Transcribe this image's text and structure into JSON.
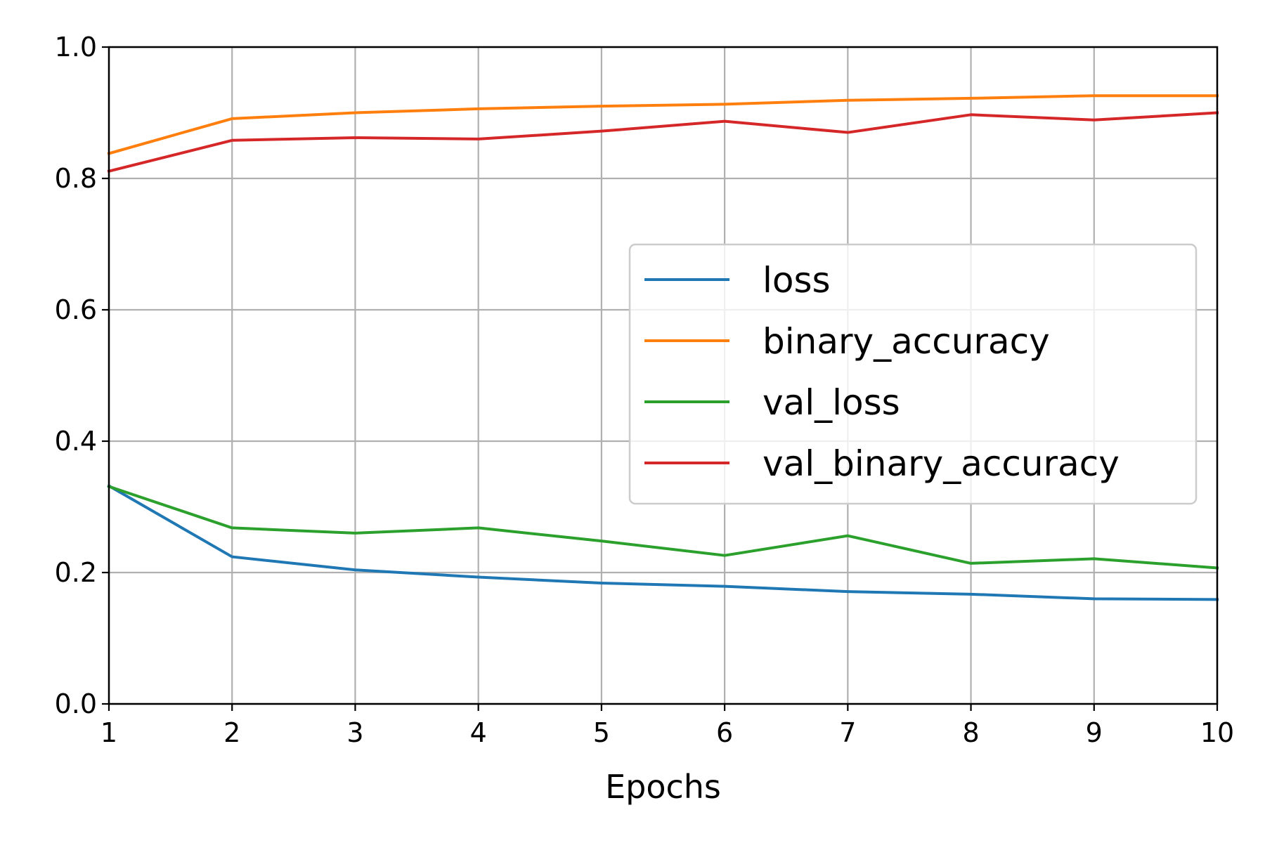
{
  "chart_data": {
    "type": "line",
    "title": "",
    "xlabel": "Epochs",
    "ylabel": "",
    "xlim": [
      1,
      10
    ],
    "ylim": [
      0.0,
      1.0
    ],
    "x": [
      1,
      2,
      3,
      4,
      5,
      6,
      7,
      8,
      9,
      10
    ],
    "x_ticks": [
      "1",
      "2",
      "3",
      "4",
      "5",
      "6",
      "7",
      "8",
      "9",
      "10"
    ],
    "y_ticks": [
      "0.0",
      "0.2",
      "0.4",
      "0.6",
      "0.8",
      "1.0"
    ],
    "grid": true,
    "legend_position": "center-right",
    "series": [
      {
        "name": "loss",
        "color": "#1f77b4",
        "values": [
          0.332,
          0.224,
          0.204,
          0.193,
          0.184,
          0.179,
          0.171,
          0.167,
          0.16,
          0.159
        ]
      },
      {
        "name": "binary_accuracy",
        "color": "#ff7f0e",
        "values": [
          0.838,
          0.891,
          0.9,
          0.906,
          0.91,
          0.913,
          0.919,
          0.922,
          0.926,
          0.926
        ]
      },
      {
        "name": "val_loss",
        "color": "#2ca02c",
        "values": [
          0.331,
          0.268,
          0.26,
          0.268,
          0.248,
          0.226,
          0.256,
          0.214,
          0.221,
          0.207
        ]
      },
      {
        "name": "val_binary_accuracy",
        "color": "#d62728",
        "values": [
          0.811,
          0.858,
          0.862,
          0.86,
          0.872,
          0.887,
          0.87,
          0.897,
          0.889,
          0.9
        ]
      }
    ]
  }
}
